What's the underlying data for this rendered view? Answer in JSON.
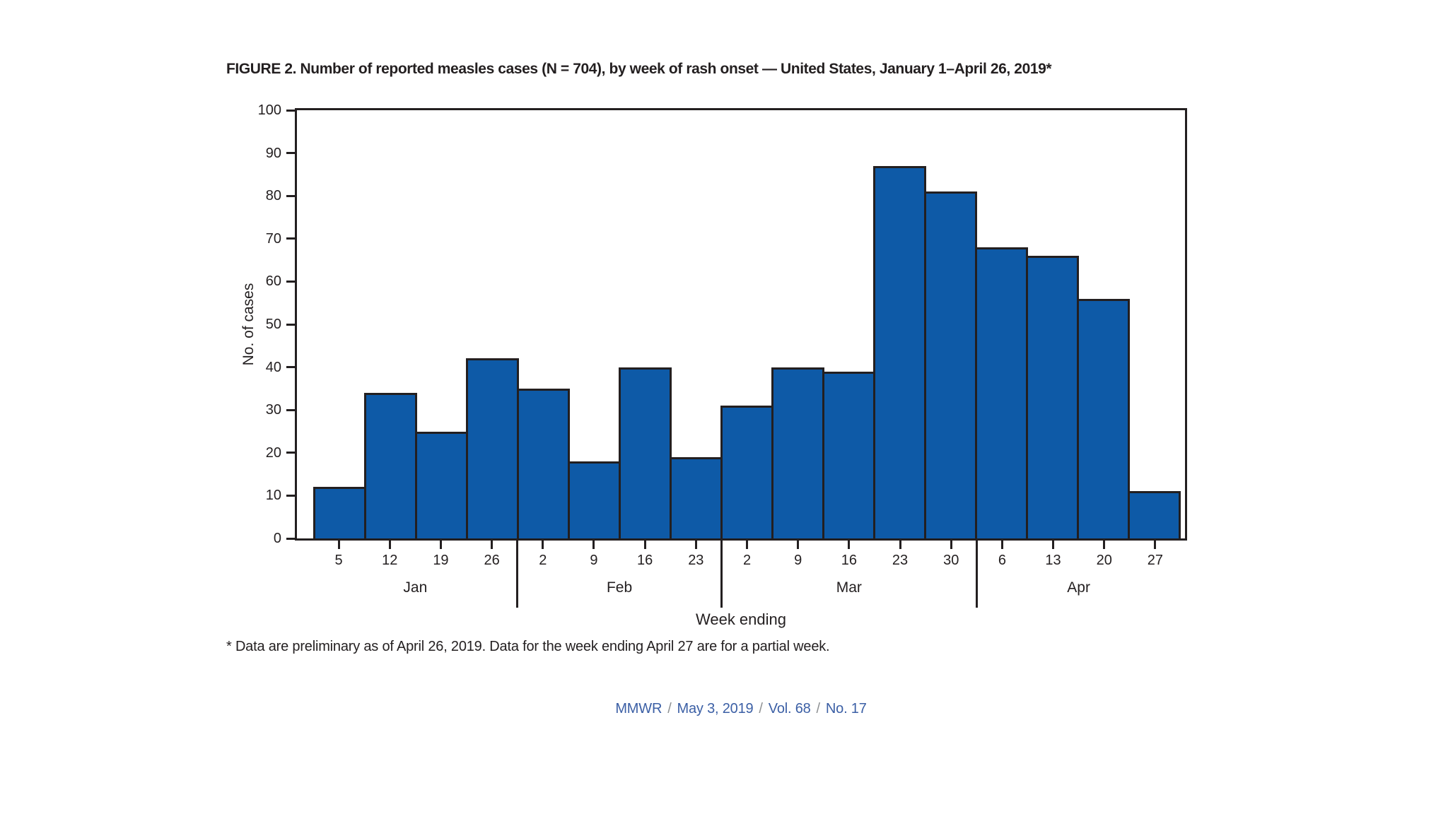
{
  "page": {
    "title": "FIGURE 2. Number of reported measles cases (N = 704), by week of rash onset — United States, January 1–April 26, 2019*",
    "footnote": "* Data are preliminary as of April 26, 2019. Data for the week ending April 27 are for a partial week.",
    "citation": {
      "journal": "MMWR",
      "separator": "/",
      "date": "May 3, 2019",
      "volume": "Vol. 68",
      "issue": "No. 17"
    }
  },
  "chart_data": {
    "type": "bar",
    "title": "FIGURE 2. Number of reported measles cases (N = 704), by week of rash onset — United States, January 1–April 26, 2019*",
    "xlabel": "Week ending",
    "ylabel": "No. of cases",
    "ylim": [
      0,
      100
    ],
    "yticks": [
      0,
      10,
      20,
      30,
      40,
      50,
      60,
      70,
      80,
      90,
      100
    ],
    "grid": false,
    "legend": "none",
    "total_cases": 704,
    "bar_color": "#0e5aa7",
    "bar_border_color": "#231f20",
    "axis_color": "#231f20",
    "citation_text_color": "#3b5fa5",
    "categories": [
      "Jan 5",
      "Jan 12",
      "Jan 19",
      "Jan 26",
      "Feb 2",
      "Feb 9",
      "Feb 16",
      "Feb 23",
      "Mar 2",
      "Mar 9",
      "Mar 16",
      "Mar 23",
      "Mar 30",
      "Apr 6",
      "Apr 13",
      "Apr 20",
      "Apr 27"
    ],
    "values": [
      12,
      34,
      25,
      42,
      35,
      18,
      40,
      19,
      31,
      40,
      39,
      87,
      81,
      68,
      66,
      56,
      11
    ],
    "months": [
      {
        "label": "Jan",
        "weeks": [
          "5",
          "12",
          "19",
          "26"
        ]
      },
      {
        "label": "Feb",
        "weeks": [
          "2",
          "9",
          "16",
          "23"
        ]
      },
      {
        "label": "Mar",
        "weeks": [
          "2",
          "9",
          "16",
          "23",
          "30"
        ]
      },
      {
        "label": "Apr",
        "weeks": [
          "6",
          "13",
          "20",
          "27"
        ]
      }
    ]
  }
}
